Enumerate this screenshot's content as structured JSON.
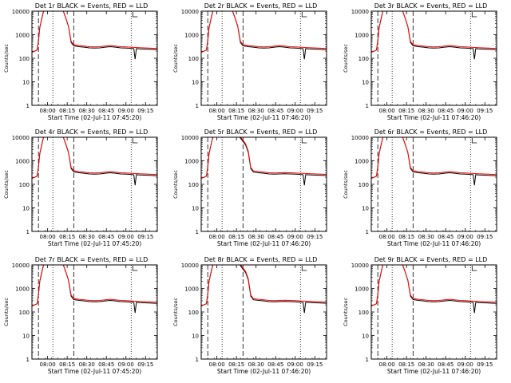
{
  "chart_data": [
    {
      "type": "line",
      "title": "Det 1r BLACK = Events, RED = LLD",
      "ylabel": "Counts/sec",
      "xlabel": "Start Time (02-Jul-11 07:45:20)",
      "y_scale": "log",
      "ylim": [
        1,
        10000
      ],
      "yticks": [
        "1",
        "10",
        "100",
        "1000",
        "10000"
      ],
      "xticks": [
        "08:00",
        "08:15",
        "08:30",
        "08:45",
        "09:00",
        "09:15"
      ],
      "dashed_lines": [
        "07:53",
        "08:20"
      ],
      "dotted_lines": [
        "08:04",
        "09:04"
      ],
      "series": [
        {
          "name": "Events",
          "color": "#000000",
          "shape": "A",
          "dip": true
        },
        {
          "name": "LLD",
          "color": "#ff0000",
          "shape": "A"
        }
      ]
    },
    {
      "type": "line",
      "title": "Det 2r BLACK = Events, RED = LLD",
      "ylabel": "Counts/sec",
      "xlabel": "Start Time (02-Jul-11 07:46:20)",
      "y_scale": "log",
      "ylim": [
        1,
        10000
      ],
      "yticks": [
        "1",
        "10",
        "100",
        "1000",
        "10000"
      ],
      "xticks": [
        "08:00",
        "08:15",
        "08:30",
        "08:45",
        "09:00",
        "09:15"
      ],
      "dashed_lines": [
        "07:53",
        "08:20"
      ],
      "dotted_lines": [
        "08:04",
        "09:04"
      ],
      "series": [
        {
          "name": "Events",
          "color": "#000000",
          "shape": "A",
          "dip": true
        },
        {
          "name": "LLD",
          "color": "#ff0000",
          "shape": "A"
        }
      ]
    },
    {
      "type": "line",
      "title": "Det 3r BLACK = Events, RED = LLD",
      "ylabel": "Counts/sec",
      "xlabel": "Start Time (02-Jul-11 07:46:20)",
      "y_scale": "log",
      "ylim": [
        1,
        10000
      ],
      "yticks": [
        "1",
        "10",
        "100",
        "1000",
        "10000"
      ],
      "xticks": [
        "08:00",
        "08:15",
        "08:30",
        "08:45",
        "09:00",
        "09:15"
      ],
      "dashed_lines": [
        "07:53",
        "08:20"
      ],
      "dotted_lines": [
        "08:04",
        "09:04"
      ],
      "series": [
        {
          "name": "Events",
          "color": "#000000",
          "shape": "A",
          "dip": true
        },
        {
          "name": "LLD",
          "color": "#ff0000",
          "shape": "A"
        }
      ]
    },
    {
      "type": "line",
      "title": "Det 4r BLACK = Events, RED = LLD",
      "ylabel": "Counts/sec",
      "xlabel": "Start Time (02-Jul-11 07:45:20)",
      "y_scale": "log",
      "ylim": [
        1,
        10000
      ],
      "yticks": [
        "1",
        "10",
        "100",
        "1000",
        "10000"
      ],
      "xticks": [
        "08:00",
        "08:15",
        "08:30",
        "08:45",
        "09:00",
        "09:15"
      ],
      "dashed_lines": [
        "07:53",
        "08:20"
      ],
      "dotted_lines": [
        "08:04",
        "09:04"
      ],
      "series": [
        {
          "name": "Events",
          "color": "#000000",
          "shape": "A",
          "dip": true
        },
        {
          "name": "LLD",
          "color": "#ff0000",
          "shape": "A"
        }
      ]
    },
    {
      "type": "line",
      "title": "Det 5r BLACK = Events, RED = LLD",
      "ylabel": "Counts/sec",
      "xlabel": "Start Time (02-Jul-11 07:46:20)",
      "y_scale": "log",
      "ylim": [
        1,
        10000
      ],
      "yticks": [
        "1",
        "10",
        "100",
        "1000",
        "10000"
      ],
      "xticks": [
        "08:00",
        "08:15",
        "08:30",
        "08:45",
        "09:00",
        "09:15"
      ],
      "dashed_lines": [
        "07:53",
        "08:20"
      ],
      "dotted_lines": [
        "08:04",
        "09:04"
      ],
      "series": [
        {
          "name": "Events",
          "color": "#000000",
          "shape": "B",
          "dip": true
        },
        {
          "name": "LLD",
          "color": "#ff0000",
          "shape": "B"
        }
      ]
    },
    {
      "type": "line",
      "title": "Det 6r BLACK = Events, RED = LLD",
      "ylabel": "Counts/sec",
      "xlabel": "Start Time (02-Jul-11 07:46:20)",
      "y_scale": "log",
      "ylim": [
        1,
        10000
      ],
      "yticks": [
        "1",
        "10",
        "100",
        "1000",
        "10000"
      ],
      "xticks": [
        "08:00",
        "08:15",
        "08:30",
        "08:45",
        "09:00",
        "09:15"
      ],
      "dashed_lines": [
        "07:53",
        "08:20"
      ],
      "dotted_lines": [
        "08:04",
        "09:04"
      ],
      "series": [
        {
          "name": "Events",
          "color": "#000000",
          "shape": "A",
          "dip": true
        },
        {
          "name": "LLD",
          "color": "#ff0000",
          "shape": "A"
        }
      ]
    },
    {
      "type": "line",
      "title": "Det 7r BLACK = Events, RED = LLD",
      "ylabel": "Counts/sec",
      "xlabel": "Start Time (02-Jul-11 07:45:20)",
      "y_scale": "log",
      "ylim": [
        1,
        10000
      ],
      "yticks": [
        "1",
        "10",
        "100",
        "1000",
        "10000"
      ],
      "xticks": [
        "08:00",
        "08:15",
        "08:30",
        "08:45",
        "09:00",
        "09:15"
      ],
      "dashed_lines": [
        "07:53",
        "08:20"
      ],
      "dotted_lines": [
        "08:04",
        "09:04"
      ],
      "series": [
        {
          "name": "Events",
          "color": "#000000",
          "shape": "A",
          "dip": true
        },
        {
          "name": "LLD",
          "color": "#ff0000",
          "shape": "A"
        }
      ]
    },
    {
      "type": "line",
      "title": "Det 8r BLACK = Events, RED = LLD",
      "ylabel": "Counts/sec",
      "xlabel": "Start Time (02-Jul-11 07:46:20)",
      "y_scale": "log",
      "ylim": [
        1,
        10000
      ],
      "yticks": [
        "1",
        "10",
        "100",
        "1000",
        "10000"
      ],
      "xticks": [
        "08:00",
        "08:15",
        "08:30",
        "08:45",
        "09:00",
        "09:15"
      ],
      "dashed_lines": [
        "07:53",
        "08:20"
      ],
      "dotted_lines": [
        "08:04",
        "09:04"
      ],
      "series": [
        {
          "name": "Events",
          "color": "#000000",
          "shape": "B",
          "dip": true
        },
        {
          "name": "LLD",
          "color": "#ff0000",
          "shape": "B"
        }
      ]
    },
    {
      "type": "line",
      "title": "Det 9r BLACK = Events, RED = LLD",
      "ylabel": "Counts/sec",
      "xlabel": "Start Time (02-Jul-11 07:46:20)",
      "y_scale": "log",
      "ylim": [
        1,
        10000
      ],
      "yticks": [
        "1",
        "10",
        "100",
        "1000",
        "10000"
      ],
      "xticks": [
        "08:00",
        "08:15",
        "08:30",
        "08:45",
        "09:00",
        "09:15"
      ],
      "dashed_lines": [
        "07:53",
        "08:20"
      ],
      "dotted_lines": [
        "08:04",
        "09:04"
      ],
      "series": [
        {
          "name": "Events",
          "color": "#000000",
          "shape": "A",
          "dip": true
        },
        {
          "name": "LLD",
          "color": "#ff0000",
          "shape": "A"
        }
      ]
    }
  ]
}
